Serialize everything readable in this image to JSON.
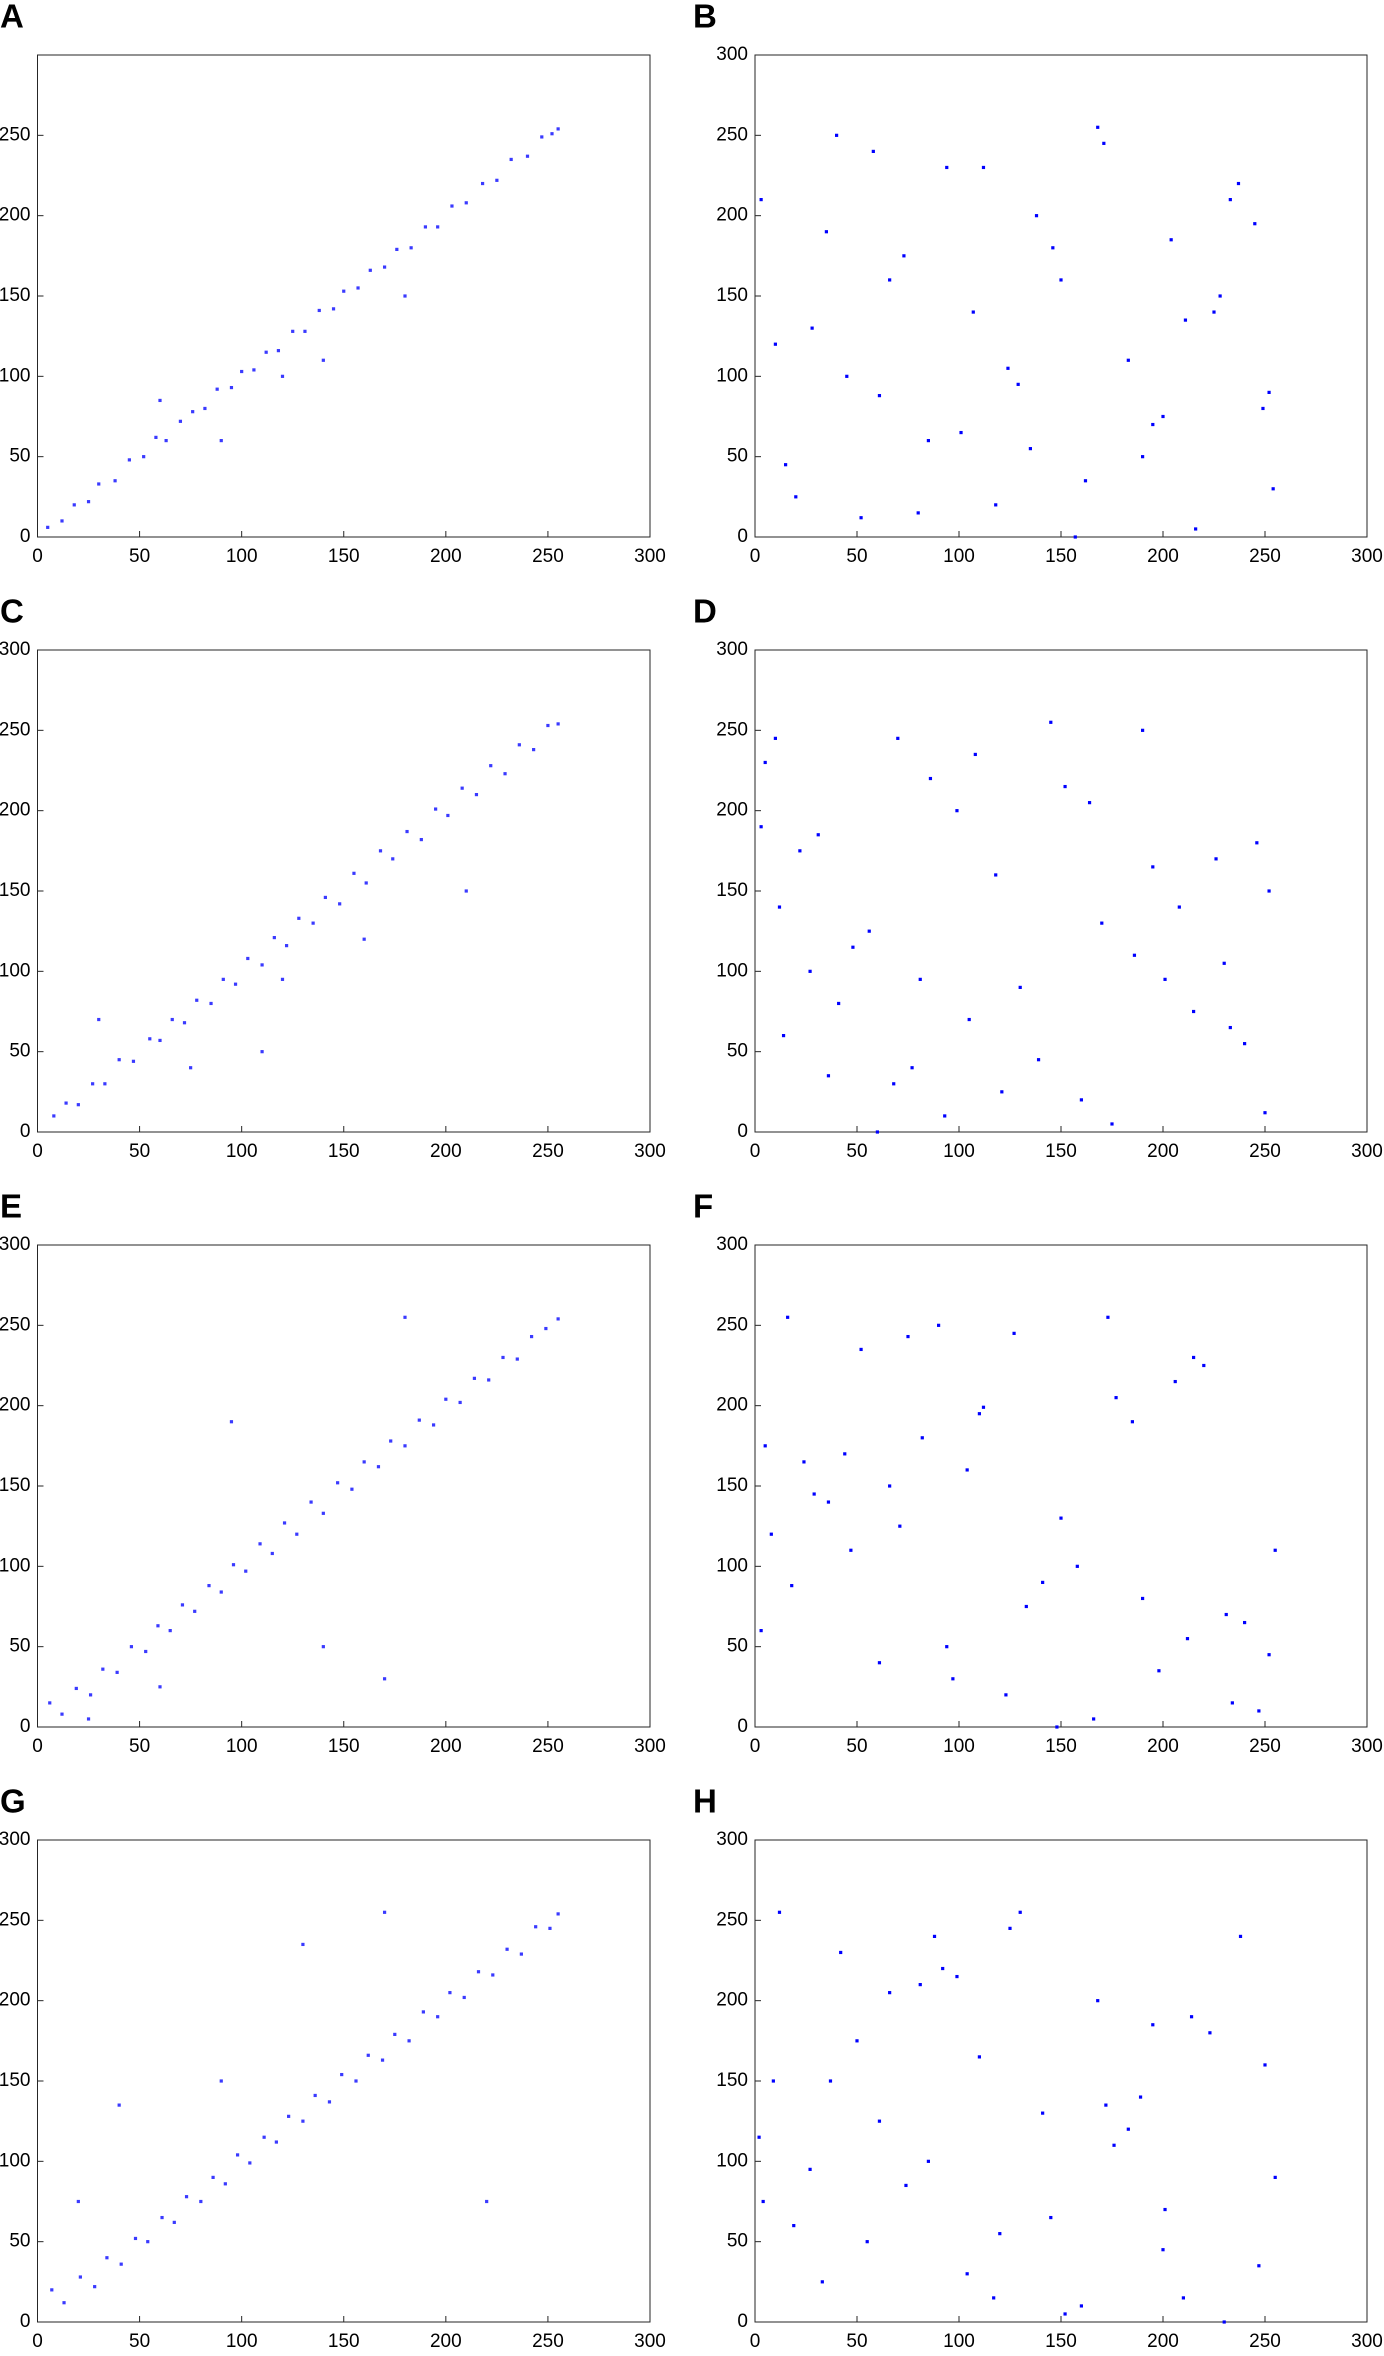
{
  "chart_data": [
    {
      "type": "scatter",
      "title": "A",
      "color": "#3a3aff",
      "xlim": [
        0,
        300
      ],
      "ylim": [
        0,
        300
      ],
      "xticks": [
        0,
        50,
        100,
        150,
        200,
        250,
        300
      ],
      "yticks": [
        0,
        50,
        100,
        150,
        200,
        250
      ],
      "x": [
        5,
        12,
        18,
        25,
        30,
        38,
        45,
        52,
        58,
        63,
        70,
        76,
        82,
        88,
        95,
        100,
        106,
        112,
        118,
        125,
        131,
        138,
        145,
        150,
        157,
        163,
        170,
        176,
        183,
        190,
        196,
        203,
        210,
        218,
        225,
        232,
        240,
        247,
        252,
        255,
        90,
        120,
        60,
        140,
        180
      ],
      "values": [
        6,
        10,
        20,
        22,
        33,
        35,
        48,
        50,
        62,
        60,
        72,
        78,
        80,
        92,
        93,
        103,
        104,
        115,
        116,
        128,
        128,
        141,
        142,
        153,
        155,
        166,
        168,
        179,
        180,
        193,
        193,
        206,
        208,
        220,
        222,
        235,
        237,
        249,
        251,
        254,
        60,
        100,
        85,
        110,
        150
      ]
    },
    {
      "type": "scatter",
      "title": "B",
      "color": "#0000ff",
      "xlim": [
        0,
        300
      ],
      "ylim": [
        0,
        300
      ],
      "xticks": [
        0,
        50,
        100,
        150,
        200,
        250,
        300
      ],
      "yticks": [
        0,
        50,
        100,
        150,
        200,
        250,
        300
      ],
      "x": [
        3,
        15,
        28,
        40,
        52,
        61,
        73,
        85,
        94,
        107,
        118,
        129,
        138,
        150,
        162,
        171,
        183,
        195,
        204,
        216,
        228,
        237,
        249,
        254,
        10,
        35,
        58,
        80,
        101,
        124,
        146,
        168,
        190,
        211,
        233,
        252,
        20,
        66,
        112,
        157,
        200,
        245,
        45,
        135,
        225
      ],
      "values": [
        210,
        45,
        130,
        250,
        12,
        88,
        175,
        60,
        230,
        140,
        20,
        95,
        200,
        160,
        35,
        245,
        110,
        70,
        185,
        5,
        150,
        220,
        80,
        30,
        120,
        190,
        240,
        15,
        65,
        105,
        180,
        255,
        50,
        135,
        210,
        90,
        25,
        160,
        230,
        0,
        75,
        195,
        100,
        55,
        140
      ]
    },
    {
      "type": "scatter",
      "title": "C",
      "color": "#3a3aff",
      "xlim": [
        0,
        300
      ],
      "ylim": [
        0,
        300
      ],
      "xticks": [
        0,
        50,
        100,
        150,
        200,
        250,
        300
      ],
      "yticks": [
        0,
        50,
        100,
        150,
        200,
        250,
        300
      ],
      "x": [
        8,
        14,
        20,
        27,
        33,
        40,
        47,
        55,
        60,
        66,
        72,
        78,
        85,
        91,
        97,
        103,
        110,
        116,
        122,
        128,
        135,
        141,
        148,
        155,
        161,
        168,
        174,
        181,
        188,
        195,
        201,
        208,
        215,
        222,
        229,
        236,
        243,
        250,
        255,
        30,
        75,
        110,
        160,
        210,
        120
      ],
      "values": [
        10,
        18,
        17,
        30,
        30,
        45,
        44,
        58,
        57,
        70,
        68,
        82,
        80,
        95,
        92,
        108,
        104,
        121,
        116,
        133,
        130,
        146,
        142,
        161,
        155,
        175,
        170,
        187,
        182,
        201,
        197,
        214,
        210,
        228,
        223,
        241,
        238,
        253,
        254,
        70,
        40,
        50,
        120,
        150,
        95
      ]
    },
    {
      "type": "scatter",
      "title": "D",
      "color": "#0000ff",
      "xlim": [
        0,
        300
      ],
      "ylim": [
        0,
        300
      ],
      "xticks": [
        0,
        50,
        100,
        150,
        200,
        250,
        300
      ],
      "yticks": [
        0,
        50,
        100,
        150,
        200,
        250,
        300
      ],
      "x": [
        250,
        5,
        130,
        22,
        77,
        190,
        48,
        233,
        99,
        160,
        12,
        201,
        145,
        68,
        31,
        118,
        240,
        86,
        175,
        56,
        215,
        3,
        139,
        108,
        27,
        252,
        93,
        164,
        41,
        226,
        186,
        70,
        14,
        121,
        208,
        152,
        36,
        246,
        81,
        170,
        60,
        105,
        195,
        230,
        10
      ],
      "values": [
        12,
        230,
        90,
        175,
        40,
        250,
        115,
        65,
        200,
        20,
        140,
        95,
        255,
        30,
        185,
        160,
        55,
        220,
        5,
        125,
        75,
        190,
        45,
        235,
        100,
        150,
        10,
        205,
        80,
        170,
        110,
        245,
        60,
        25,
        140,
        215,
        35,
        180,
        95,
        130,
        0,
        70,
        165,
        105,
        245
      ]
    },
    {
      "type": "scatter",
      "title": "E",
      "color": "#3a3aff",
      "xlim": [
        0,
        300
      ],
      "ylim": [
        0,
        300
      ],
      "xticks": [
        0,
        50,
        100,
        150,
        200,
        250,
        300
      ],
      "yticks": [
        0,
        50,
        100,
        150,
        200,
        250,
        300
      ],
      "x": [
        6,
        12,
        19,
        26,
        32,
        39,
        46,
        53,
        59,
        65,
        71,
        77,
        84,
        90,
        96,
        102,
        109,
        115,
        121,
        127,
        134,
        140,
        147,
        154,
        160,
        167,
        173,
        180,
        187,
        194,
        200,
        207,
        214,
        221,
        228,
        235,
        242,
        249,
        255,
        25,
        95,
        140,
        170,
        180,
        60
      ],
      "values": [
        15,
        8,
        24,
        20,
        36,
        34,
        50,
        47,
        63,
        60,
        76,
        72,
        88,
        84,
        101,
        97,
        114,
        108,
        127,
        120,
        140,
        133,
        152,
        148,
        165,
        162,
        178,
        175,
        191,
        188,
        204,
        202,
        217,
        216,
        230,
        229,
        243,
        248,
        254,
        5,
        190,
        50,
        30,
        255,
        25
      ]
    },
    {
      "type": "scatter",
      "title": "F",
      "color": "#0000ff",
      "xlim": [
        0,
        300
      ],
      "ylim": [
        0,
        300
      ],
      "xticks": [
        0,
        50,
        100,
        150,
        200,
        250,
        300
      ],
      "yticks": [
        0,
        50,
        100,
        150,
        200,
        250,
        300
      ],
      "x": [
        18,
        234,
        75,
        150,
        3,
        112,
        198,
        44,
        255,
        90,
        166,
        29,
        133,
        220,
        61,
        185,
        8,
        247,
        104,
        141,
        52,
        212,
        177,
        36,
        123,
        82,
        240,
        16,
        158,
        97,
        206,
        66,
        190,
        127,
        24,
        252,
        148,
        71,
        110,
        231,
        47,
        173,
        5,
        94,
        215
      ],
      "values": [
        88,
        15,
        243,
        130,
        60,
        199,
        35,
        170,
        110,
        250,
        5,
        145,
        75,
        225,
        40,
        190,
        120,
        10,
        160,
        90,
        235,
        55,
        205,
        140,
        20,
        180,
        65,
        255,
        100,
        30,
        215,
        150,
        80,
        245,
        165,
        45,
        0,
        125,
        195,
        70,
        110,
        255,
        175,
        50,
        230
      ]
    },
    {
      "type": "scatter",
      "title": "G",
      "color": "#3a3aff",
      "xlim": [
        0,
        300
      ],
      "ylim": [
        0,
        300
      ],
      "xticks": [
        0,
        50,
        100,
        150,
        200,
        250,
        300
      ],
      "yticks": [
        0,
        50,
        100,
        150,
        200,
        250,
        300
      ],
      "x": [
        7,
        13,
        21,
        28,
        34,
        41,
        48,
        54,
        61,
        67,
        73,
        80,
        86,
        92,
        98,
        104,
        111,
        117,
        123,
        130,
        136,
        143,
        149,
        156,
        162,
        169,
        175,
        182,
        189,
        196,
        202,
        209,
        216,
        223,
        230,
        237,
        244,
        251,
        255,
        20,
        40,
        130,
        170,
        220,
        90
      ],
      "values": [
        20,
        12,
        28,
        22,
        40,
        36,
        52,
        50,
        65,
        62,
        78,
        75,
        90,
        86,
        104,
        99,
        115,
        112,
        128,
        125,
        141,
        137,
        154,
        150,
        166,
        163,
        179,
        175,
        193,
        190,
        205,
        202,
        218,
        216,
        232,
        229,
        246,
        245,
        254,
        75,
        135,
        235,
        255,
        75,
        150
      ]
    },
    {
      "type": "scatter",
      "title": "H",
      "color": "#0000ff",
      "xlim": [
        0,
        300
      ],
      "ylim": [
        0,
        300
      ],
      "xticks": [
        0,
        50,
        100,
        150,
        200,
        250,
        300
      ],
      "yticks": [
        0,
        50,
        100,
        150,
        200,
        250,
        300
      ],
      "x": [
        42,
        201,
        117,
        9,
        168,
        85,
        247,
        130,
        61,
        223,
        19,
        152,
        99,
        189,
        74,
        238,
        33,
        110,
        176,
        55,
        214,
        141,
        4,
        92,
        160,
        250,
        27,
        125,
        200,
        66,
        183,
        12,
        145,
        230,
        50,
        104,
        172,
        81,
        255,
        37,
        210,
        120,
        2,
        195,
        88
      ],
      "values": [
        230,
        70,
        15,
        150,
        200,
        100,
        35,
        255,
        125,
        180,
        60,
        5,
        215,
        140,
        85,
        240,
        25,
        165,
        110,
        50,
        190,
        130,
        75,
        220,
        10,
        160,
        95,
        245,
        45,
        205,
        120,
        255,
        65,
        0,
        175,
        30,
        135,
        210,
        90,
        150,
        15,
        55,
        115,
        185,
        240
      ]
    }
  ]
}
